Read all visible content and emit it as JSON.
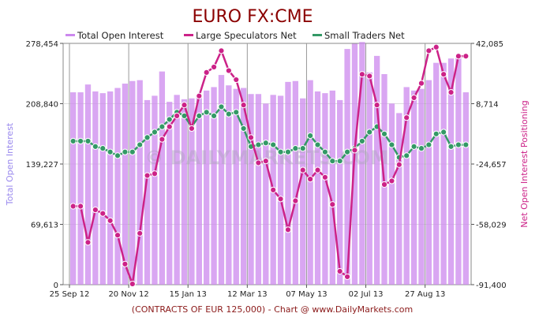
{
  "chart_data": {
    "type": "bar+line",
    "title": "EURO FX:CME",
    "footer": "(CONTRACTS OF EUR 125,000)  - Chart @ www.DailyMarkets.com",
    "watermark": "© DAILYMARKETS.COM",
    "legend": [
      {
        "name": "Total Open Interest",
        "color": "#cc88ee"
      },
      {
        "name": "Large Speculators Net",
        "color": "#cc2288"
      },
      {
        "name": "Small Traders Net",
        "color": "#339966"
      }
    ],
    "left_axis": {
      "title": "Total Open Interest",
      "color": "#9988ee",
      "range": [
        0,
        278454
      ],
      "ticks": [
        "278,454",
        "208,840",
        "139,227",
        "69,613",
        "0"
      ]
    },
    "right_axis": {
      "title": "Net Open Interest Positioning",
      "color": "#cc2288",
      "range": [
        -91400,
        42085
      ],
      "ticks": [
        "42,085",
        "8,714",
        "-24,657",
        "-58,029",
        "-91,400"
      ]
    },
    "x_tick_labels": [
      "25 Sep 12",
      "20 Nov 12",
      "15 Jan 13",
      "12 Mar 13",
      "07 May 13",
      "02 Jul 13",
      "27 Aug 13"
    ],
    "x_tick_positions": [
      0,
      8,
      16,
      24,
      32,
      40,
      48
    ],
    "open_interest": [
      222000,
      222000,
      231000,
      223000,
      221000,
      223000,
      227000,
      232000,
      235000,
      236000,
      213000,
      218000,
      246000,
      211000,
      219000,
      214000,
      215000,
      219000,
      224000,
      228000,
      242000,
      230000,
      226000,
      227000,
      220000,
      220000,
      209000,
      219000,
      218000,
      234000,
      235000,
      215000,
      236000,
      223000,
      221000,
      224000,
      213000,
      272000,
      278000,
      280000,
      245000,
      264000,
      243000,
      209000,
      198000,
      228000,
      224000,
      226000,
      236000,
      256000,
      256000,
      261000,
      262000,
      222000
    ],
    "large_speculators_net": [
      -48000,
      -48000,
      -68000,
      -50000,
      -52000,
      -56000,
      -64000,
      -80000,
      -91000,
      -63000,
      -31000,
      -30000,
      -11000,
      -4000,
      2000,
      8000,
      -5000,
      13000,
      26000,
      29000,
      38000,
      27000,
      22000,
      8000,
      -10000,
      -24000,
      -23000,
      -39000,
      -44000,
      -61000,
      -45000,
      -28000,
      -33000,
      -28000,
      -32000,
      -47000,
      -84000,
      -87000,
      -17000,
      25000,
      24000,
      8000,
      -36000,
      -34000,
      -25000,
      1000,
      12000,
      20000,
      38000,
      40000,
      25000,
      15000,
      35000,
      35000
    ],
    "small_traders_net": [
      -12000,
      -12000,
      -12000,
      -15000,
      -16000,
      -18000,
      -20000,
      -18000,
      -18000,
      -14000,
      -10000,
      -7000,
      -4000,
      0,
      4000,
      2000,
      -4000,
      2000,
      4000,
      2000,
      7000,
      3000,
      4000,
      -5000,
      -15000,
      -14000,
      -13000,
      -14000,
      -18000,
      -18000,
      -16000,
      -16000,
      -9000,
      -14000,
      -18000,
      -23000,
      -23000,
      -18000,
      -16000,
      -12000,
      -7000,
      -4000,
      -8000,
      -14000,
      -21000,
      -20000,
      -15000,
      -16000,
      -14000,
      -8000,
      -7000,
      -15000,
      -14000,
      -14000
    ]
  }
}
